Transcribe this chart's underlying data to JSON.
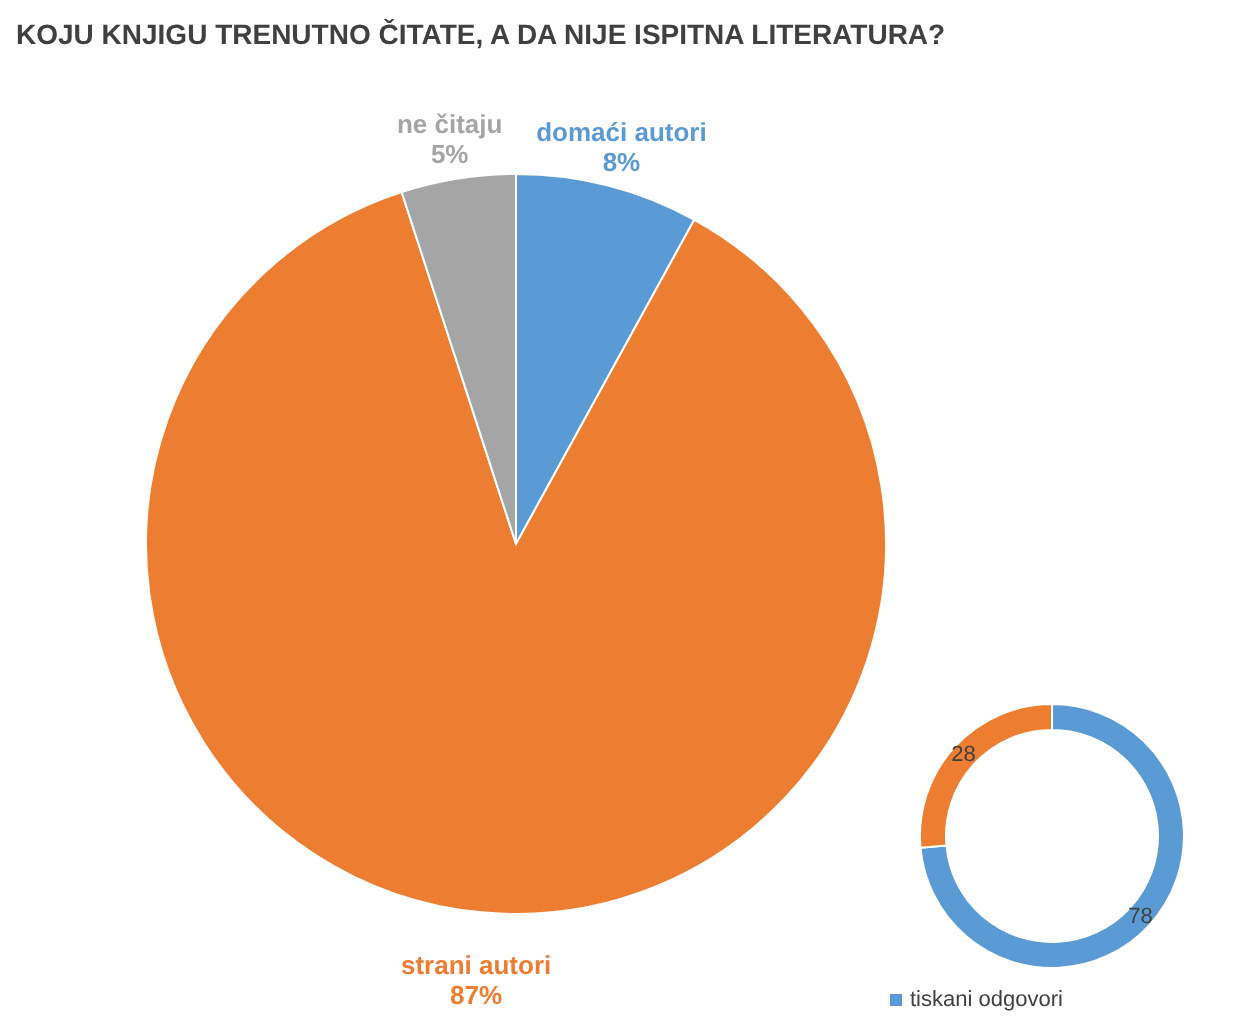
{
  "chart_data": [
    {
      "type": "pie",
      "title": "KOJU KNJIGU TRENUTNO ČITATE, A DA NIJE ISPITNA LITERATURA?",
      "categories": [
        "domaći autori",
        "strani autori",
        "ne čitaju"
      ],
      "values": [
        8,
        87,
        5
      ],
      "colors": [
        "#5b9bd5",
        "#ed7d31",
        "#a5a5a5"
      ],
      "value_labels": [
        "8%",
        "87%",
        "5%"
      ]
    },
    {
      "type": "donut",
      "categories": [
        "tiskani odgovori",
        null
      ],
      "values": [
        78,
        28
      ],
      "colors": [
        "#5b9bd5",
        "#ed7d31"
      ],
      "data_labels": true,
      "legend": "bottom"
    }
  ]
}
